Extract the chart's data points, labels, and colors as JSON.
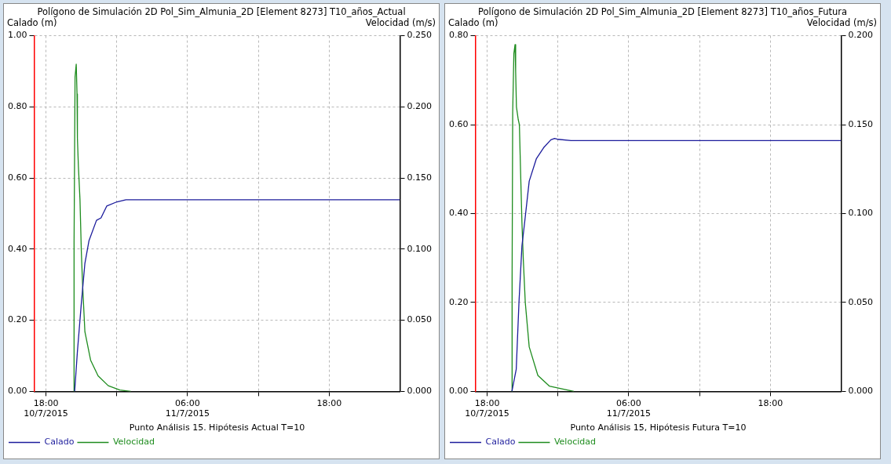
{
  "chart_data": [
    {
      "type": "line",
      "title": "Polígono de Simulación 2D Pol_Sim_Almunia_2D [Element 8273] T10_años_Actual",
      "xlabel": "Punto Análisis 15. Hipótesis Actual T=10",
      "ylabel": "Calado (m)",
      "y2label": "Velocidad (m/s)",
      "xlim": [
        "2015-07-10T17:00",
        "2015-07-12T00:00"
      ],
      "xticks": [
        {
          "value": "2015-07-10T18:00",
          "label": "18:00\n10/7/2015"
        },
        {
          "value": "2015-07-11T00:00",
          "label": null
        },
        {
          "value": "2015-07-11T06:00",
          "label": "06:00\n11/7/2015"
        },
        {
          "value": "2015-07-11T12:00",
          "label": null
        },
        {
          "value": "2015-07-11T18:00",
          "label": "18:00"
        }
      ],
      "ylim": [
        0,
        1
      ],
      "yticks": [
        {
          "value": 0,
          "label": "0.00"
        },
        {
          "value": 0.2,
          "label": "0.20"
        },
        {
          "value": 0.4,
          "label": "0.40"
        },
        {
          "value": 0.6,
          "label": "0.60"
        },
        {
          "value": 0.8,
          "label": "0.80"
        },
        {
          "value": 1,
          "label": "1.00"
        }
      ],
      "y2lim": [
        0,
        0.25
      ],
      "y2ticks": [
        {
          "value": 0,
          "label": "0.000"
        },
        {
          "value": 0.05,
          "label": "0.050"
        },
        {
          "value": 0.1,
          "label": "0.100"
        },
        {
          "value": 0.15,
          "label": "0.150"
        },
        {
          "value": 0.2,
          "label": "0.200"
        },
        {
          "value": 0.25,
          "label": "0.250"
        }
      ],
      "grid": true,
      "legend": "bottom left",
      "marker": "none",
      "line_style": "solid",
      "series": [
        {
          "name": "Calado",
          "color": "#1c1c9c",
          "axis": "y",
          "x": [
            "2015-07-10T20:26",
            "2015-07-10T20:40",
            "2015-07-10T21:00",
            "2015-07-10T21:18",
            "2015-07-10T21:39",
            "2015-07-10T22:17",
            "2015-07-10T22:40",
            "2015-07-10T23:09",
            "2015-07-11T00:01",
            "2015-07-11T00:47",
            "2015-07-12T00:00"
          ],
          "values": [
            0,
            0.112,
            0.248,
            0.36,
            0.424,
            0.481,
            0.488,
            0.521,
            0.533,
            0.539,
            0.539
          ]
        },
        {
          "name": "Velocidad",
          "color": "#1e8c1e",
          "axis": "y2",
          "x": [
            "2015-07-10T20:22",
            "2015-07-10T20:23",
            "2015-07-10T20:28",
            "2015-07-10T20:34",
            "2015-07-10T20:38",
            "2015-07-10T20:40",
            "2015-07-10T20:45",
            "2015-07-10T20:53",
            "2015-07-10T21:00",
            "2015-07-10T21:06",
            "2015-07-10T21:18",
            "2015-07-10T21:47",
            "2015-07-10T22:25",
            "2015-07-10T23:17",
            "2015-07-11T00:16",
            "2015-07-11T01:11"
          ],
          "values": [
            0,
            0.104,
            0.221,
            0.23,
            0.209,
            0.178,
            0.158,
            0.135,
            0.098,
            0.076,
            0.042,
            0.022,
            0.011,
            0.004,
            0.001,
            0
          ]
        }
      ]
    },
    {
      "type": "line",
      "title": "Polígono de Simulación 2D Pol_Sim_Almunia_2D [Element 8273] T10_años_Futura",
      "xlabel": "Punto Análisis 15, Hipótesis Futura T=10",
      "ylabel": "Calado (m)",
      "y2label": "Velocidad (m/s)",
      "xlim": [
        "2015-07-10T17:00",
        "2015-07-12T00:00"
      ],
      "xticks": [
        {
          "value": "2015-07-10T18:00",
          "label": "18:00\n10/7/2015"
        },
        {
          "value": "2015-07-11T00:00",
          "label": null
        },
        {
          "value": "2015-07-11T06:00",
          "label": "06:00\n11/7/2015"
        },
        {
          "value": "2015-07-11T12:00",
          "label": null
        },
        {
          "value": "2015-07-11T18:00",
          "label": "18:00"
        }
      ],
      "ylim": [
        0,
        0.8
      ],
      "yticks": [
        {
          "value": 0,
          "label": "0.00"
        },
        {
          "value": 0.2,
          "label": "0.20"
        },
        {
          "value": 0.4,
          "label": "0.40"
        },
        {
          "value": 0.6,
          "label": "0.60"
        },
        {
          "value": 0.8,
          "label": "0.80"
        }
      ],
      "y2lim": [
        0,
        0.2
      ],
      "y2ticks": [
        {
          "value": 0,
          "label": "0.000"
        },
        {
          "value": 0.05,
          "label": "0.050"
        },
        {
          "value": 0.1,
          "label": "0.100"
        },
        {
          "value": 0.15,
          "label": "0.150"
        },
        {
          "value": 0.2,
          "label": "0.200"
        }
      ],
      "grid": true,
      "legend": "bottom left",
      "marker": "none",
      "line_style": "solid",
      "series": [
        {
          "name": "Calado",
          "color": "#1c1c9c",
          "axis": "y",
          "x": [
            "2015-07-10T20:06",
            "2015-07-10T20:28",
            "2015-07-10T20:42",
            "2015-07-10T20:57",
            "2015-07-10T21:12",
            "2015-07-10T21:34",
            "2015-07-10T22:10",
            "2015-07-10T22:47",
            "2015-07-10T23:24",
            "2015-07-10T23:43",
            "2015-07-11T00:01",
            "2015-07-11T01:07",
            "2015-07-12T00:00"
          ],
          "values": [
            0,
            0.05,
            0.201,
            0.327,
            0.385,
            0.473,
            0.523,
            0.548,
            0.566,
            0.569,
            0.567,
            0.564,
            0.564
          ]
        },
        {
          "name": "Velocidad",
          "color": "#1e8c1e",
          "axis": "y2",
          "x": [
            "2015-07-10T20:06",
            "2015-07-10T20:07",
            "2015-07-10T20:10",
            "2015-07-10T20:16",
            "2015-07-10T20:22",
            "2015-07-10T20:25",
            "2015-07-10T20:29",
            "2015-07-10T20:38",
            "2015-07-10T20:44",
            "2015-07-10T20:50",
            "2015-07-10T20:57",
            "2015-07-10T21:04",
            "2015-07-10T21:14",
            "2015-07-10T21:34",
            "2015-07-10T22:18",
            "2015-07-10T23:16",
            "2015-07-11T01:21"
          ],
          "values": [
            0,
            0.064,
            0.157,
            0.19,
            0.195,
            0.18,
            0.16,
            0.153,
            0.15,
            0.124,
            0.095,
            0.074,
            0.05,
            0.025,
            0.009,
            0.003,
            0
          ]
        }
      ]
    }
  ]
}
